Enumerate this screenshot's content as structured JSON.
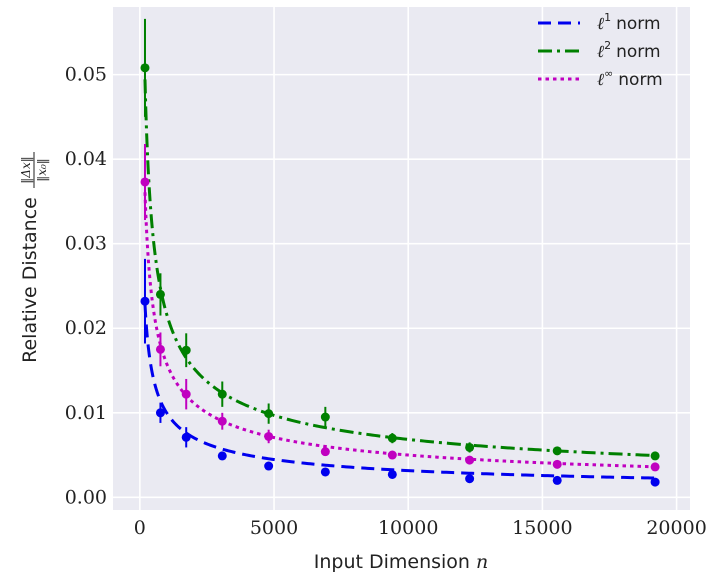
{
  "chart_data": {
    "type": "line",
    "xlabel": "Input Dimension",
    "xlabel_var": "n",
    "ylabel": "Relative Distance",
    "ylabel_frac_num": "‖Δx‖",
    "ylabel_frac_den": "‖x₀‖",
    "xlim": [
      -1000,
      20500
    ],
    "ylim": [
      -0.0015,
      0.058
    ],
    "xticks": [
      0,
      5000,
      10000,
      15000,
      20000
    ],
    "xtick_labels": [
      "0",
      "5000",
      "10000",
      "15000",
      "20000"
    ],
    "yticks": [
      0.0,
      0.01,
      0.02,
      0.03,
      0.04,
      0.05
    ],
    "ytick_labels": [
      "0.00",
      "0.01",
      "0.02",
      "0.03",
      "0.04",
      "0.05"
    ],
    "grid": true,
    "legend_position": "top-right",
    "x": [
      192,
      768,
      1728,
      3072,
      4800,
      6912,
      9408,
      12288,
      15552,
      19200
    ],
    "series": [
      {
        "name": "ℓ¹ norm",
        "legend_base": "ℓ",
        "legend_sup": "1",
        "legend_suffix": "norm",
        "color": "#0000ee",
        "dash": "13,7",
        "fit_coeff": 0.316,
        "values": [
          0.0232,
          0.01,
          0.0071,
          0.0049,
          0.0037,
          0.003,
          0.0027,
          0.0022,
          0.002,
          0.0018
        ],
        "errors": [
          0.005,
          0.0012,
          0.0012,
          0.0005,
          0.0004,
          0.0003,
          0.0003,
          0.0003,
          0.0002,
          0.0002
        ]
      },
      {
        "name": "ℓ² norm",
        "legend_base": "ℓ",
        "legend_sup": "2",
        "legend_suffix": "norm",
        "color": "#008000",
        "dash": "14,5,3,5",
        "fit_coeff": 0.685,
        "values": [
          0.0508,
          0.024,
          0.0174,
          0.0122,
          0.0099,
          0.0095,
          0.007,
          0.0059,
          0.0055,
          0.0049
        ],
        "errors": [
          0.0058,
          0.0025,
          0.002,
          0.0015,
          0.0012,
          0.0012,
          0.0006,
          0.0006,
          0.0004,
          0.0003
        ]
      },
      {
        "name": "ℓ∞ norm",
        "legend_base": "ℓ",
        "legend_sup": "∞",
        "legend_suffix": "norm",
        "color": "#c000c0",
        "dash": "3.5,4",
        "fit_coeff": 0.5,
        "values": [
          0.0373,
          0.0175,
          0.0122,
          0.009,
          0.0072,
          0.0054,
          0.005,
          0.0044,
          0.0039,
          0.0036
        ],
        "errors": [
          0.0045,
          0.002,
          0.0018,
          0.001,
          0.0008,
          0.0005,
          0.0004,
          0.0004,
          0.0003,
          0.0003
        ]
      }
    ]
  }
}
